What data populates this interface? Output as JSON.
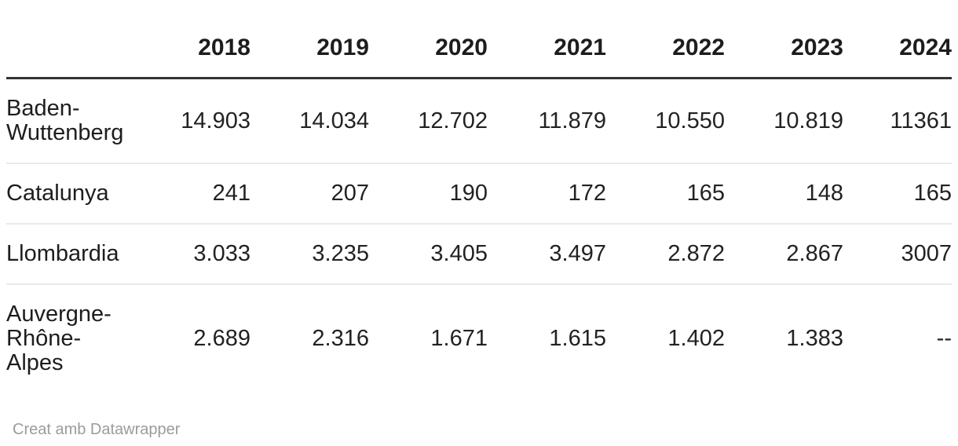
{
  "table": {
    "corner_label": "",
    "years": [
      "2018",
      "2019",
      "2020",
      "2021",
      "2022",
      "2023",
      "2024"
    ],
    "rows": [
      {
        "label": "Baden-Wuttenberg",
        "values": [
          "14.903",
          "14.034",
          "12.702",
          "11.879",
          "10.550",
          "10.819",
          "11361"
        ]
      },
      {
        "label": "Catalunya",
        "values": [
          "241",
          "207",
          "190",
          "172",
          "165",
          "148",
          "165"
        ]
      },
      {
        "label": "Llombardia",
        "values": [
          "3.033",
          "3.235",
          "3.405",
          "3.497",
          "2.872",
          "2.867",
          "3007"
        ]
      },
      {
        "label": "Auvergne-Rhône-Alpes",
        "values": [
          "2.689",
          "2.316",
          "1.671",
          "1.615",
          "1.402",
          "1.383",
          "--"
        ]
      }
    ]
  },
  "footer": {
    "attribution": "Creat amb Datawrapper"
  },
  "colors": {
    "header_text": "#1d1d1d",
    "body_text": "#222222",
    "header_rule": "#333333",
    "row_divider": "#e9e9e9",
    "attribution_text": "#9b9b9b",
    "background": "#ffffff"
  },
  "chart_data": {
    "type": "table",
    "columns": [
      "",
      "2018",
      "2019",
      "2020",
      "2021",
      "2022",
      "2023",
      "2024"
    ],
    "rows": [
      [
        "Baden-Wuttenberg",
        "14.903",
        "14.034",
        "12.702",
        "11.879",
        "10.550",
        "10.819",
        "11361"
      ],
      [
        "Catalunya",
        "241",
        "207",
        "190",
        "172",
        "165",
        "148",
        "165"
      ],
      [
        "Llombardia",
        "3.033",
        "3.235",
        "3.405",
        "3.497",
        "2.872",
        "2.867",
        "3007"
      ],
      [
        "Auvergne-Rhône-Alpes",
        "2.689",
        "2.316",
        "1.671",
        "1.615",
        "1.402",
        "1.383",
        "--"
      ]
    ],
    "title": "",
    "attribution": "Creat amb Datawrapper",
    "layout_hints": {
      "first_column_align": "left",
      "value_columns_align": "right",
      "header_rule": "thick",
      "row_dividers": "light"
    }
  }
}
